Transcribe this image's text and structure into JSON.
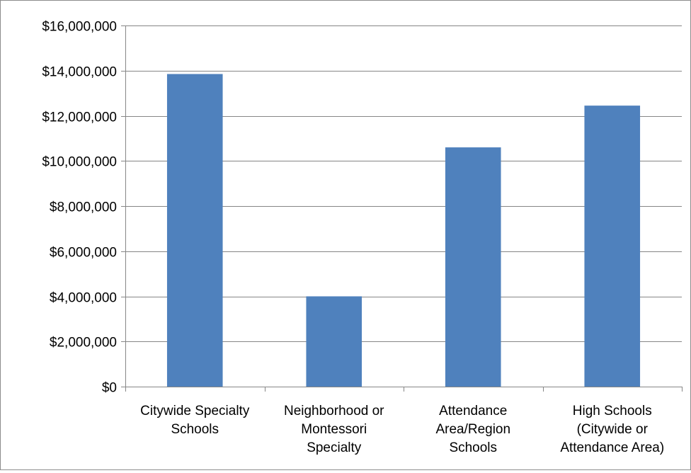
{
  "chart_data": {
    "type": "bar",
    "title": "",
    "xlabel": "",
    "ylabel": "",
    "categories": [
      [
        "Citywide Specialty",
        "Schools"
      ],
      [
        "Neighborhood or",
        "Montessori",
        "Specialty"
      ],
      [
        "Attendance",
        "Area/Region",
        "Schools"
      ],
      [
        "High Schools",
        "(Citywide or",
        "Attendance Area)"
      ]
    ],
    "values": [
      13850000,
      4000000,
      10600000,
      12450000
    ],
    "ylim": [
      0,
      16000000
    ],
    "yticks": [
      0,
      2000000,
      4000000,
      6000000,
      8000000,
      10000000,
      12000000,
      14000000,
      16000000
    ],
    "ytick_labels": [
      "$0",
      "$2,000,000",
      "$4,000,000",
      "$6,000,000",
      "$8,000,000",
      "$10,000,000",
      "$12,000,000",
      "$14,000,000",
      "$16,000,000"
    ],
    "grid": true,
    "legend": "none",
    "colors": {
      "bar": "#4f81bd",
      "grid": "#868686",
      "axis": "#868686"
    }
  }
}
